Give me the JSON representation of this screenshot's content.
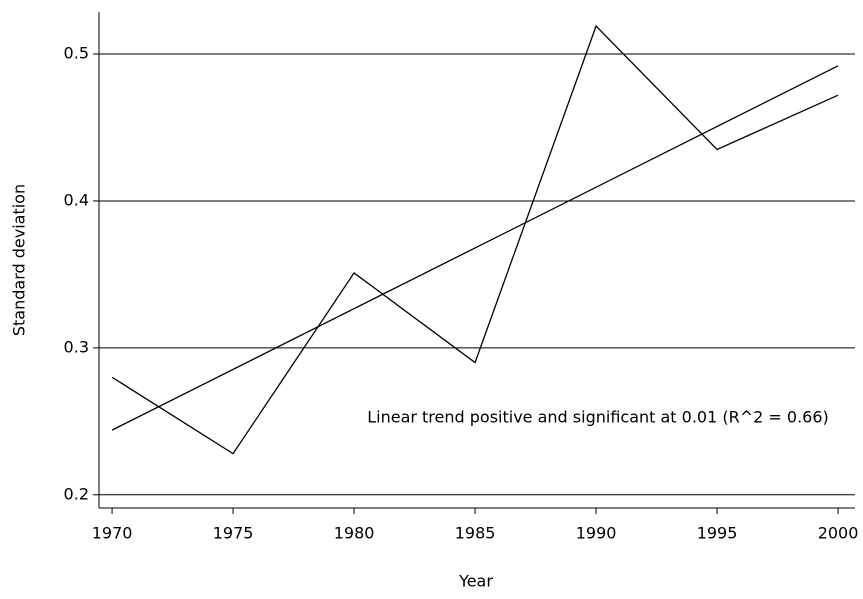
{
  "chart_data": {
    "type": "line",
    "xlabel": "Year",
    "ylabel": "Standard deviation",
    "annotation": "Linear trend positive and significant at 0.01 (R^2 = 0.66)",
    "series": [
      {
        "color": "#000000",
        "x": [
          1970,
          1975,
          1980,
          1985,
          1990,
          1995,
          2000
        ],
        "values": [
          0.28,
          0.228,
          0.351,
          0.29,
          0.519,
          0.435,
          0.472
        ]
      },
      {
        "color": "#000000",
        "x": [
          1970,
          2000
        ],
        "values": [
          0.244,
          0.492
        ]
      }
    ],
    "xlim": [
      1969.46,
      2000.7
    ],
    "xticks": [
      1970,
      1975,
      1980,
      1985,
      1990,
      1995,
      2000
    ],
    "ylim": [
      0.191,
      0.5286
    ],
    "yticks": [
      0.2,
      0.3,
      0.4,
      0.5
    ],
    "grid": true
  }
}
